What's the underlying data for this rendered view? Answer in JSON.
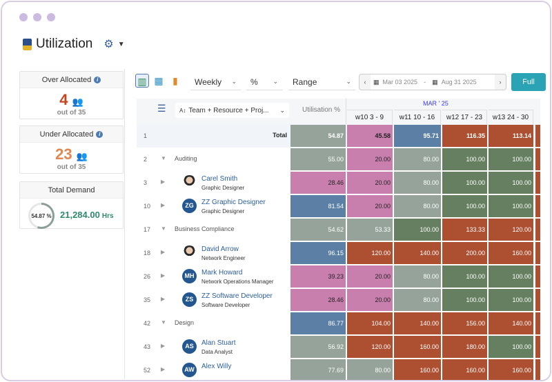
{
  "title": "Utilization",
  "colors": {
    "g": "#95a39a",
    "p": "#c97fae",
    "b": "#5b7fa5",
    "r": "#ad4f31",
    "d": "#657f60"
  },
  "cards": {
    "over": {
      "label": "Over Allocated",
      "count": "4",
      "sub": "out of 35",
      "color": "#c4461f"
    },
    "under": {
      "label": "Under Allocated",
      "count": "23",
      "sub": "out of 35",
      "color": "#e2874f"
    },
    "demand": {
      "label": "Total Demand",
      "percent": "54.87 %",
      "percent_value": 54.87,
      "hours": "21,284.00",
      "unit": "Hrs"
    }
  },
  "toolbar": {
    "period": "Weekly",
    "unit": "%",
    "range": "Range",
    "start": "Mar 03 2025",
    "sep": "-",
    "end": "Aug 31 2025",
    "full": "Full",
    "prev": "‹",
    "next": "›"
  },
  "grid": {
    "group_by": "Team + Resource + Proj...",
    "util_header": "Utilisation %",
    "month": "MAR ' 25",
    "weeks": [
      "w10 3 - 9",
      "w11 10 - 16",
      "w12 17 - 23",
      "w13 24 - 30"
    ],
    "rows": [
      {
        "num": "1",
        "type": "total",
        "name": "Total",
        "util": [
          "54.87",
          "g"
        ],
        "w": [
          [
            "45.58",
            "p"
          ],
          [
            "95.71",
            "b"
          ],
          [
            "116.35",
            "r"
          ],
          [
            "113.14",
            "r"
          ],
          [
            "",
            "r"
          ]
        ]
      },
      {
        "num": "2",
        "type": "group",
        "name": "Auditing",
        "util": [
          "55.00",
          "g"
        ],
        "w": [
          [
            "20.00",
            "p"
          ],
          [
            "80.00",
            "g"
          ],
          [
            "100.00",
            "d"
          ],
          [
            "100.00",
            "d"
          ],
          [
            "",
            "r"
          ]
        ]
      },
      {
        "num": "3",
        "type": "person",
        "name": "Carel Smith",
        "role": "Graphic Designer",
        "avatar": "",
        "util": [
          "28.46",
          "p"
        ],
        "w": [
          [
            "20.00",
            "p"
          ],
          [
            "80.00",
            "g"
          ],
          [
            "100.00",
            "d"
          ],
          [
            "100.00",
            "d"
          ],
          [
            "",
            "r"
          ]
        ]
      },
      {
        "num": "10",
        "type": "person",
        "name": "ZZ Graphic Designer",
        "role": "Graphic Designer",
        "avatar": "ZG",
        "util": [
          "81.54",
          "b"
        ],
        "w": [
          [
            "20.00",
            "p"
          ],
          [
            "80.00",
            "g"
          ],
          [
            "100.00",
            "d"
          ],
          [
            "100.00",
            "d"
          ],
          [
            "",
            "r"
          ]
        ]
      },
      {
        "num": "17",
        "type": "group",
        "name": "Business Compliance",
        "util": [
          "54.62",
          "g"
        ],
        "w": [
          [
            "53.33",
            "g"
          ],
          [
            "100.00",
            "d"
          ],
          [
            "133.33",
            "r"
          ],
          [
            "120.00",
            "r"
          ],
          [
            "",
            "r"
          ]
        ]
      },
      {
        "num": "18",
        "type": "person",
        "name": "David Arrow",
        "role": "Network Engineer",
        "avatar": "",
        "util": [
          "96.15",
          "b"
        ],
        "w": [
          [
            "120.00",
            "r"
          ],
          [
            "140.00",
            "r"
          ],
          [
            "200.00",
            "r"
          ],
          [
            "160.00",
            "r"
          ],
          [
            "",
            "r"
          ]
        ]
      },
      {
        "num": "26",
        "type": "person",
        "name": "Mark Howard",
        "role": "Network Operations Manager",
        "avatar": "MH",
        "util": [
          "39.23",
          "p"
        ],
        "w": [
          [
            "20.00",
            "p"
          ],
          [
            "80.00",
            "g"
          ],
          [
            "100.00",
            "d"
          ],
          [
            "100.00",
            "d"
          ],
          [
            "",
            "r"
          ]
        ]
      },
      {
        "num": "35",
        "type": "person",
        "name": "ZZ Software Developer",
        "role": "Software Developer",
        "avatar": "ZS",
        "util": [
          "28.46",
          "p"
        ],
        "w": [
          [
            "20.00",
            "p"
          ],
          [
            "80.00",
            "g"
          ],
          [
            "100.00",
            "d"
          ],
          [
            "100.00",
            "d"
          ],
          [
            "",
            "r"
          ]
        ]
      },
      {
        "num": "42",
        "type": "group",
        "name": "Design",
        "util": [
          "86.77",
          "b"
        ],
        "w": [
          [
            "104.00",
            "r"
          ],
          [
            "140.00",
            "r"
          ],
          [
            "156.00",
            "r"
          ],
          [
            "140.00",
            "r"
          ],
          [
            "",
            "r"
          ]
        ]
      },
      {
        "num": "43",
        "type": "person",
        "name": "Alan Stuart",
        "role": "Data Analyst",
        "avatar": "AS",
        "util": [
          "56.92",
          "g"
        ],
        "w": [
          [
            "120.00",
            "r"
          ],
          [
            "160.00",
            "r"
          ],
          [
            "180.00",
            "r"
          ],
          [
            "100.00",
            "d"
          ],
          [
            "",
            "r"
          ]
        ]
      },
      {
        "num": "52",
        "type": "person",
        "name": "Alex Willy",
        "role": "",
        "avatar": "AW",
        "util": [
          "77.69",
          "g"
        ],
        "w": [
          [
            "80.00",
            "g"
          ],
          [
            "160.00",
            "r"
          ],
          [
            "160.00",
            "r"
          ],
          [
            "160.00",
            "r"
          ],
          [
            "",
            "r"
          ]
        ]
      }
    ]
  }
}
